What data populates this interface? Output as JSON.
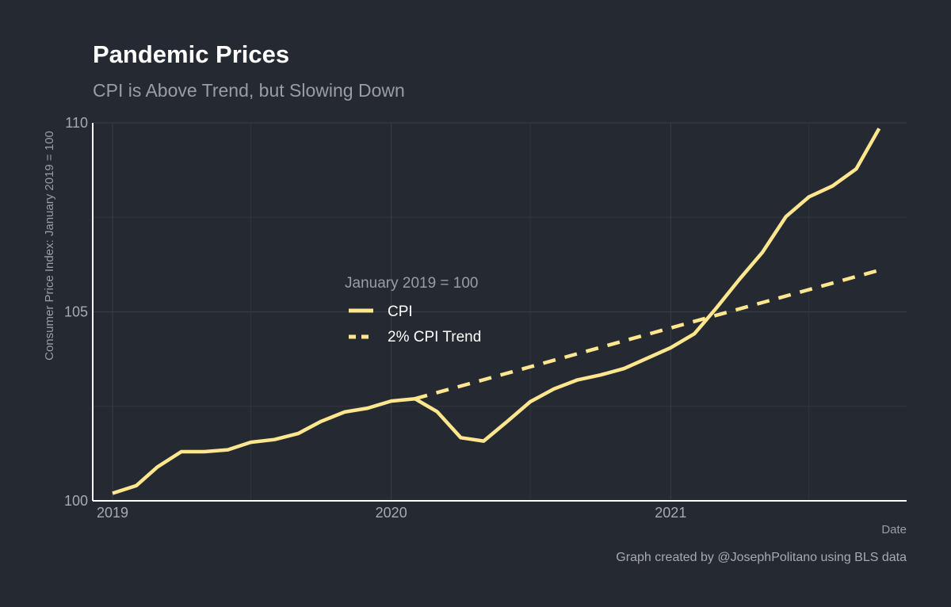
{
  "chart_data": {
    "type": "line",
    "title": "Pandemic Prices",
    "subtitle": "CPI is Above Trend, but Slowing Down",
    "xlabel": "Date",
    "ylabel": "Consumer Price Index: January 2019 = 100",
    "caption": "Graph created by @JosephPolitano using BLS data",
    "x_ticks": [
      "2019",
      "2020",
      "2021"
    ],
    "y_ticks": [
      100,
      105,
      110
    ],
    "ylim": [
      100,
      110
    ],
    "xlim": [
      "2018-12-06",
      "2021-11-06"
    ],
    "grid": true,
    "legend": {
      "title": "January 2019 = 100",
      "placement": "center-left"
    },
    "line_color": "#fde68e",
    "series": [
      {
        "name": "CPI",
        "style": "solid",
        "points": [
          [
            "2019-01-01",
            100.2
          ],
          [
            "2019-02-01",
            100.4
          ],
          [
            "2019-03-01",
            100.9
          ],
          [
            "2019-04-01",
            101.3
          ],
          [
            "2019-05-01",
            101.3
          ],
          [
            "2019-06-01",
            101.35
          ],
          [
            "2019-07-01",
            101.55
          ],
          [
            "2019-08-01",
            101.62
          ],
          [
            "2019-09-01",
            101.78
          ],
          [
            "2019-10-01",
            102.1
          ],
          [
            "2019-11-01",
            102.35
          ],
          [
            "2019-12-01",
            102.45
          ],
          [
            "2020-01-01",
            102.64
          ],
          [
            "2020-02-01",
            102.7
          ],
          [
            "2020-03-01",
            102.36
          ],
          [
            "2020-04-01",
            101.67
          ],
          [
            "2020-05-01",
            101.58
          ],
          [
            "2020-06-01",
            102.1
          ],
          [
            "2020-07-01",
            102.62
          ],
          [
            "2020-08-01",
            102.96
          ],
          [
            "2020-09-01",
            103.2
          ],
          [
            "2020-10-01",
            103.33
          ],
          [
            "2020-11-01",
            103.5
          ],
          [
            "2020-12-01",
            103.77
          ],
          [
            "2021-01-01",
            104.05
          ],
          [
            "2021-02-01",
            104.42
          ],
          [
            "2021-03-01",
            105.08
          ],
          [
            "2021-04-01",
            105.86
          ],
          [
            "2021-05-01",
            106.57
          ],
          [
            "2021-06-01",
            107.52
          ],
          [
            "2021-07-01",
            108.04
          ],
          [
            "2021-08-01",
            108.33
          ],
          [
            "2021-09-01",
            108.78
          ],
          [
            "2021-10-01",
            109.85
          ]
        ]
      },
      {
        "name": "2% CPI Trend",
        "style": "dashed",
        "points": [
          [
            "2020-02-01",
            102.7
          ],
          [
            "2021-10-01",
            106.1
          ]
        ]
      }
    ]
  }
}
